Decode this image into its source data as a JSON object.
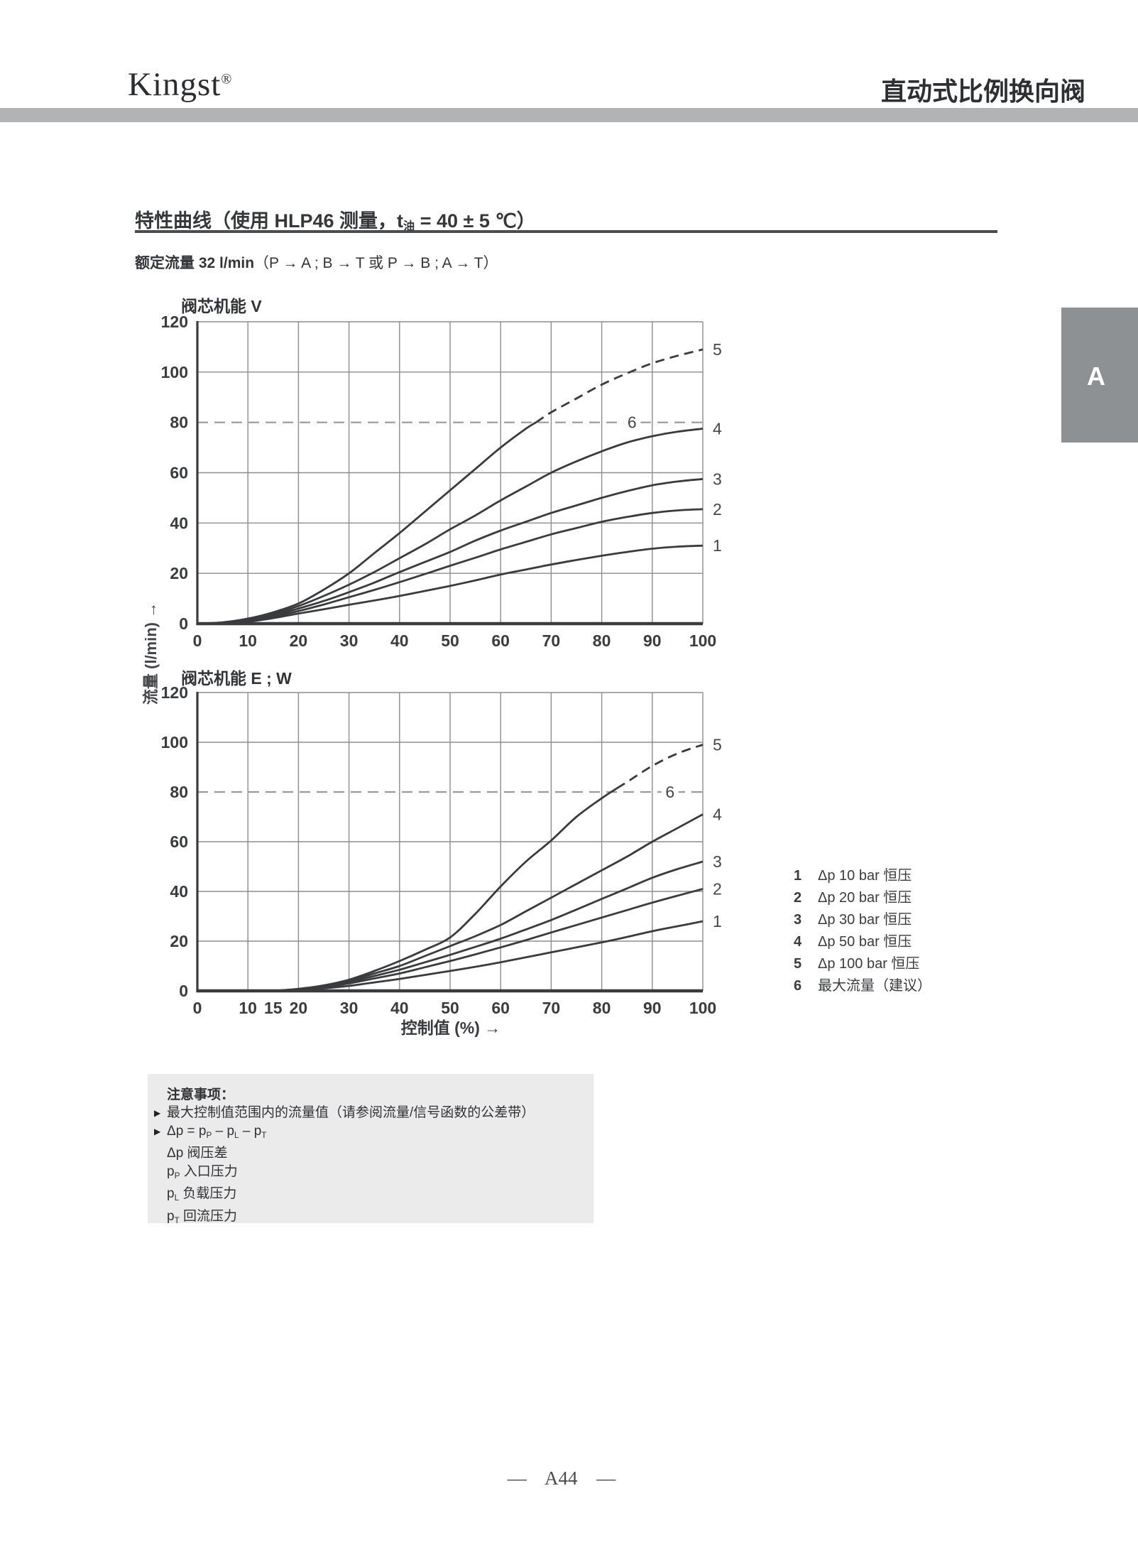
{
  "header": {
    "logo_text": "Kingst",
    "logo_mark": "®",
    "page_title": "直动式比例换向阀"
  },
  "section": {
    "title_main": "特性曲线",
    "title_paren_a": "（使用 HLP46 测量，t",
    "title_paren_sub": "油",
    "title_paren_b": " = 40 ± 5 ℃）",
    "subtitle_bold": "额定流量 32 l/min",
    "subtitle_rest": "（P → A ; B → T 或 P → B ; A → T）"
  },
  "axes": {
    "ylabel": "流量 (l/min) →",
    "xlabel": "控制值 (%) →"
  },
  "side_tab": {
    "label": "A"
  },
  "legend": {
    "items": [
      {
        "num": "1",
        "label": "Δp 10 bar 恒压"
      },
      {
        "num": "2",
        "label": "Δp 20 bar 恒压"
      },
      {
        "num": "3",
        "label": "Δp 30 bar 恒压"
      },
      {
        "num": "4",
        "label": "Δp 50 bar 恒压"
      },
      {
        "num": "5",
        "label": "Δp 100 bar 恒压"
      },
      {
        "num": "6",
        "label": "最大流量（建议）"
      }
    ]
  },
  "notes": {
    "title": "注意事项：",
    "lines": [
      {
        "marker": "▶",
        "parts": [
          {
            "t": "最大控制值范围内的流量值（请参阅流量/信号函数的公差带）"
          }
        ]
      },
      {
        "marker": "▶",
        "parts": [
          {
            "t": "Δp = p"
          },
          {
            "sub": "P"
          },
          {
            "t": " – p"
          },
          {
            "sub": "L"
          },
          {
            "t": " – p"
          },
          {
            "sub": "T"
          }
        ]
      },
      {
        "marker": "",
        "parts": [
          {
            "t": "Δp 阀压差"
          }
        ]
      },
      {
        "marker": "",
        "parts": [
          {
            "t": "p"
          },
          {
            "sub": "P"
          },
          {
            "t": " 入口压力"
          }
        ]
      },
      {
        "marker": "",
        "parts": [
          {
            "t": "p"
          },
          {
            "sub": "L"
          },
          {
            "t": " 负载压力"
          }
        ]
      },
      {
        "marker": "",
        "parts": [
          {
            "t": "p"
          },
          {
            "sub": "T"
          },
          {
            "t": " 回流压力"
          }
        ]
      }
    ]
  },
  "footer": {
    "page_label": "— A44 —"
  },
  "chart_data": [
    {
      "type": "line",
      "title": "阀芯机能 V",
      "xlabel": "控制值 (%)",
      "ylabel": "流量 (l/min)",
      "xlim": [
        0,
        100
      ],
      "ylim": [
        0,
        120
      ],
      "x_ticks": [
        0,
        10,
        20,
        30,
        40,
        50,
        60,
        70,
        80,
        90,
        100
      ],
      "y_ticks": [
        0,
        20,
        40,
        60,
        80,
        100,
        120
      ],
      "x_grid": [
        10,
        20,
        30,
        40,
        50,
        60,
        70,
        80,
        90,
        100
      ],
      "y_grid": [
        20,
        40,
        60,
        100,
        120
      ],
      "ref_line": {
        "y": 80,
        "label": "6",
        "label_x": 86,
        "meaning": "最大流量（建议）"
      },
      "series": [
        {
          "name": "5",
          "legend": "Δp 100 bar 恒压",
          "dash_from": 67,
          "points": [
            [
              0,
              0
            ],
            [
              5,
              0.5
            ],
            [
              10,
              2
            ],
            [
              15,
              4.5
            ],
            [
              20,
              8
            ],
            [
              25,
              13.5
            ],
            [
              30,
              20
            ],
            [
              35,
              28
            ],
            [
              40,
              36
            ],
            [
              45,
              44.5
            ],
            [
              50,
              53
            ],
            [
              55,
              61.5
            ],
            [
              60,
              70
            ],
            [
              65,
              77.5
            ],
            [
              67,
              80
            ],
            [
              70,
              84
            ],
            [
              75,
              89.5
            ],
            [
              80,
              95
            ],
            [
              85,
              99.5
            ],
            [
              90,
              103.5
            ],
            [
              95,
              106.5
            ],
            [
              100,
              109
            ]
          ]
        },
        {
          "name": "4",
          "legend": "Δp 50 bar 恒压",
          "points": [
            [
              0,
              0
            ],
            [
              5,
              0.4
            ],
            [
              10,
              1.5
            ],
            [
              15,
              3.8
            ],
            [
              20,
              7
            ],
            [
              25,
              11
            ],
            [
              30,
              15.5
            ],
            [
              35,
              20.5
            ],
            [
              40,
              26
            ],
            [
              45,
              31.5
            ],
            [
              50,
              37.5
            ],
            [
              55,
              43
            ],
            [
              60,
              49
            ],
            [
              65,
              54.5
            ],
            [
              70,
              60
            ],
            [
              75,
              64.5
            ],
            [
              80,
              68.5
            ],
            [
              85,
              72
            ],
            [
              90,
              74.5
            ],
            [
              95,
              76.3
            ],
            [
              100,
              77.5
            ]
          ]
        },
        {
          "name": "3",
          "legend": "Δp 30 bar 恒压",
          "points": [
            [
              0,
              0
            ],
            [
              5,
              0.3
            ],
            [
              10,
              1.2
            ],
            [
              15,
              3.2
            ],
            [
              20,
              6
            ],
            [
              25,
              9
            ],
            [
              30,
              12.5
            ],
            [
              35,
              16.3
            ],
            [
              40,
              20.5
            ],
            [
              45,
              24.5
            ],
            [
              50,
              28.5
            ],
            [
              55,
              33
            ],
            [
              60,
              37
            ],
            [
              65,
              40.5
            ],
            [
              70,
              44
            ],
            [
              75,
              47
            ],
            [
              80,
              50
            ],
            [
              85,
              52.7
            ],
            [
              90,
              55
            ],
            [
              95,
              56.5
            ],
            [
              100,
              57.5
            ]
          ]
        },
        {
          "name": "2",
          "legend": "Δp 20 bar 恒压",
          "points": [
            [
              0,
              0
            ],
            [
              5,
              0.3
            ],
            [
              10,
              1
            ],
            [
              15,
              2.7
            ],
            [
              20,
              5
            ],
            [
              25,
              7.6
            ],
            [
              30,
              10.5
            ],
            [
              35,
              13.4
            ],
            [
              40,
              16.5
            ],
            [
              45,
              19.7
            ],
            [
              50,
              23
            ],
            [
              55,
              26.2
            ],
            [
              60,
              29.5
            ],
            [
              65,
              32.5
            ],
            [
              70,
              35.5
            ],
            [
              75,
              38
            ],
            [
              80,
              40.5
            ],
            [
              85,
              42.4
            ],
            [
              90,
              44
            ],
            [
              95,
              45
            ],
            [
              100,
              45.5
            ]
          ]
        },
        {
          "name": "1",
          "legend": "Δp 10 bar 恒压",
          "points": [
            [
              0,
              0
            ],
            [
              5,
              0.2
            ],
            [
              10,
              0.8
            ],
            [
              15,
              2.2
            ],
            [
              20,
              4
            ],
            [
              25,
              5.7
            ],
            [
              30,
              7.5
            ],
            [
              35,
              9.2
            ],
            [
              40,
              11
            ],
            [
              45,
              13
            ],
            [
              50,
              15
            ],
            [
              55,
              17.2
            ],
            [
              60,
              19.5
            ],
            [
              65,
              21.5
            ],
            [
              70,
              23.5
            ],
            [
              75,
              25.3
            ],
            [
              80,
              27
            ],
            [
              85,
              28.5
            ],
            [
              90,
              29.8
            ],
            [
              95,
              30.6
            ],
            [
              100,
              31
            ]
          ]
        }
      ]
    },
    {
      "type": "line",
      "title": "阀芯机能 E ; W",
      "xlabel": "控制值 (%)",
      "ylabel": "流量 (l/min)",
      "xlim": [
        0,
        100
      ],
      "ylim": [
        0,
        120
      ],
      "x_ticks": [
        0,
        10,
        15,
        20,
        30,
        40,
        50,
        60,
        70,
        80,
        90,
        100
      ],
      "y_ticks": [
        0,
        20,
        40,
        60,
        80,
        100,
        120
      ],
      "x_grid": [
        10,
        20,
        30,
        40,
        50,
        60,
        70,
        80,
        90,
        100
      ],
      "y_grid": [
        20,
        40,
        60,
        100,
        120
      ],
      "ref_line": {
        "y": 80,
        "label": "6",
        "label_x": 93.5,
        "meaning": "最大流量（建议）"
      },
      "series": [
        {
          "name": "5",
          "legend": "Δp 100 bar 恒压",
          "dash_from": 83,
          "points": [
            [
              15,
              0
            ],
            [
              20,
              0.8
            ],
            [
              25,
              2.2
            ],
            [
              30,
              4.5
            ],
            [
              35,
              8
            ],
            [
              40,
              12
            ],
            [
              45,
              16.5
            ],
            [
              50,
              21.5
            ],
            [
              55,
              31
            ],
            [
              60,
              42
            ],
            [
              65,
              52
            ],
            [
              70,
              60.5
            ],
            [
              75,
              70
            ],
            [
              80,
              77.5
            ],
            [
              83,
              81.5
            ],
            [
              85,
              84
            ],
            [
              90,
              90.5
            ],
            [
              95,
              95.5
            ],
            [
              100,
              99
            ]
          ]
        },
        {
          "name": "4",
          "legend": "Δp 50 bar 恒压",
          "points": [
            [
              16,
              0
            ],
            [
              20,
              0.6
            ],
            [
              25,
              2
            ],
            [
              30,
              4
            ],
            [
              35,
              7
            ],
            [
              40,
              10
            ],
            [
              45,
              14
            ],
            [
              50,
              18
            ],
            [
              55,
              22
            ],
            [
              60,
              26.5
            ],
            [
              65,
              32
            ],
            [
              70,
              37.5
            ],
            [
              75,
              43
            ],
            [
              80,
              48.5
            ],
            [
              85,
              54
            ],
            [
              90,
              60
            ],
            [
              95,
              65.5
            ],
            [
              100,
              71
            ]
          ]
        },
        {
          "name": "3",
          "legend": "Δp 30 bar 恒压",
          "points": [
            [
              16,
              0
            ],
            [
              20,
              0.4
            ],
            [
              25,
              1.6
            ],
            [
              30,
              3.5
            ],
            [
              35,
              6
            ],
            [
              40,
              8.5
            ],
            [
              45,
              11.5
            ],
            [
              50,
              14.5
            ],
            [
              55,
              17.7
            ],
            [
              60,
              21
            ],
            [
              65,
              24.7
            ],
            [
              70,
              28.5
            ],
            [
              75,
              32.7
            ],
            [
              80,
              37
            ],
            [
              85,
              41.2
            ],
            [
              90,
              45.5
            ],
            [
              95,
              49
            ],
            [
              100,
              52
            ]
          ]
        },
        {
          "name": "2",
          "legend": "Δp 20 bar 恒压",
          "points": [
            [
              16,
              0
            ],
            [
              20,
              0.3
            ],
            [
              25,
              1.4
            ],
            [
              30,
              3
            ],
            [
              35,
              5
            ],
            [
              40,
              7
            ],
            [
              45,
              9.5
            ],
            [
              50,
              12
            ],
            [
              55,
              14.7
            ],
            [
              60,
              17.5
            ],
            [
              65,
              20.4
            ],
            [
              70,
              23.5
            ],
            [
              75,
              26.5
            ],
            [
              80,
              29.5
            ],
            [
              85,
              32.5
            ],
            [
              90,
              35.5
            ],
            [
              95,
              38.3
            ],
            [
              100,
              41
            ]
          ]
        },
        {
          "name": "1",
          "legend": "Δp 10 bar 恒压",
          "points": [
            [
              16,
              0
            ],
            [
              20,
              0.2
            ],
            [
              25,
              1
            ],
            [
              30,
              2
            ],
            [
              35,
              3.4
            ],
            [
              40,
              4.8
            ],
            [
              45,
              6.4
            ],
            [
              50,
              8
            ],
            [
              55,
              9.7
            ],
            [
              60,
              11.5
            ],
            [
              65,
              13.5
            ],
            [
              70,
              15.5
            ],
            [
              75,
              17.5
            ],
            [
              80,
              19.5
            ],
            [
              85,
              21.7
            ],
            [
              90,
              24
            ],
            [
              95,
              26
            ],
            [
              100,
              28
            ]
          ]
        }
      ]
    }
  ]
}
